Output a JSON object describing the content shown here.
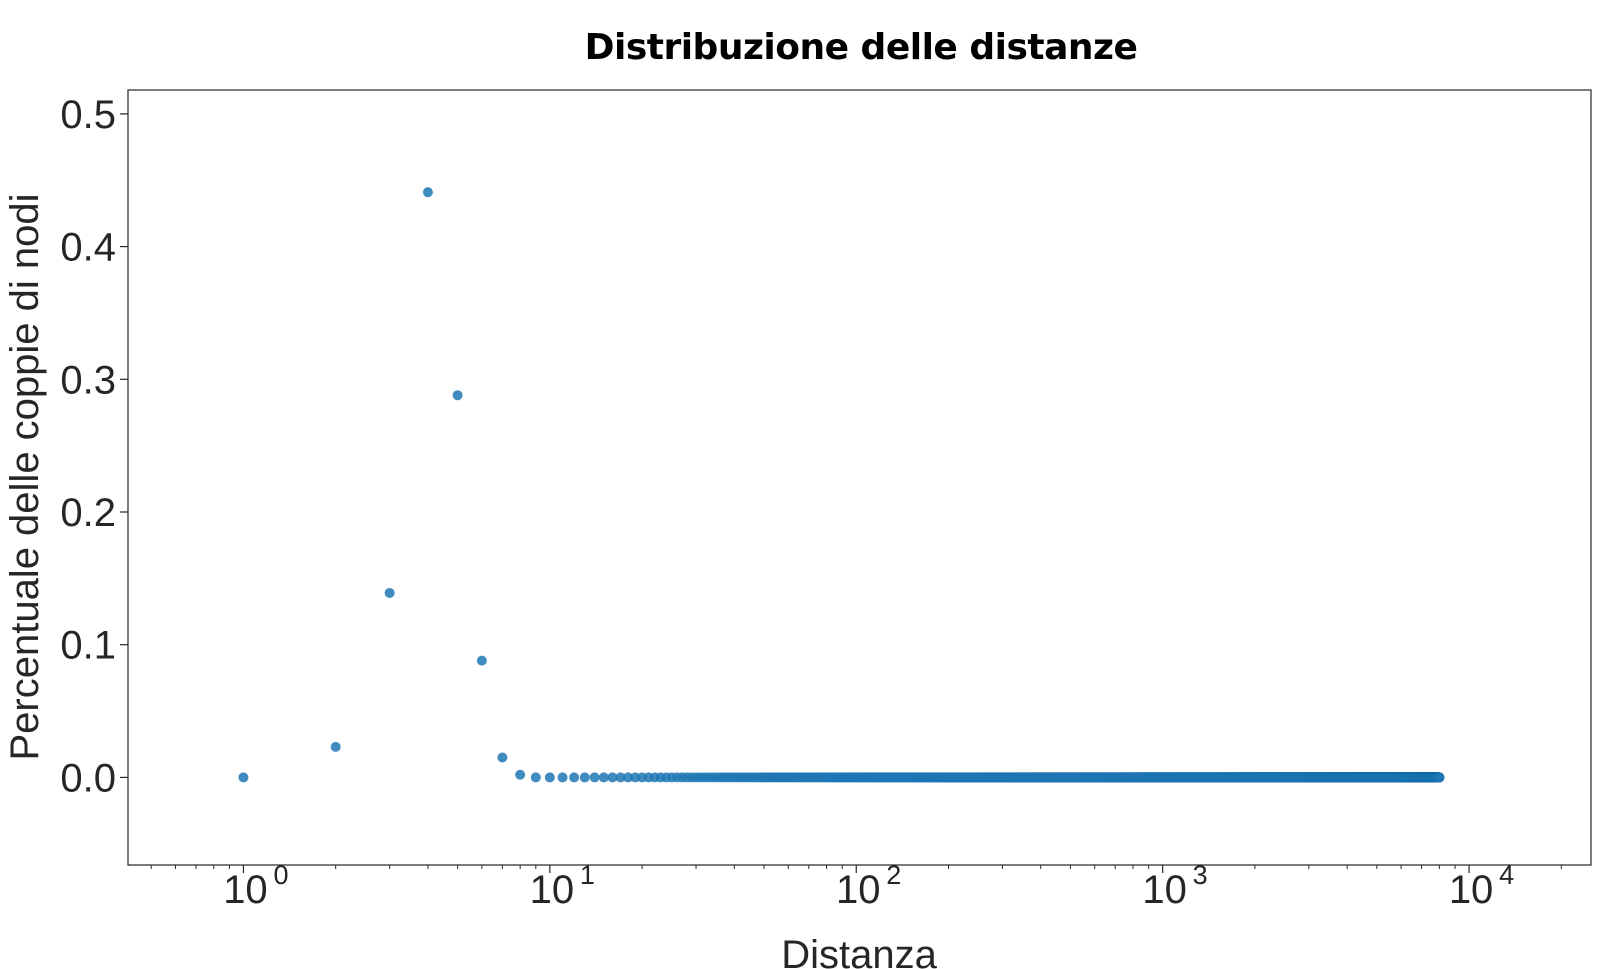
{
  "chart_data": {
    "type": "scatter",
    "title": "Distribuzione delle distanze",
    "xlabel": "Distanza",
    "ylabel": "Percentuale delle coppie di nodi",
    "x_scale": "log",
    "xlim": [
      0.42,
      25000
    ],
    "ylim": [
      -0.066,
      0.518
    ],
    "yticks": [
      "0.0",
      "0.1",
      "0.2",
      "0.3",
      "0.4",
      "0.5"
    ],
    "xticks": [
      {
        "base": "10",
        "exp": "0"
      },
      {
        "base": "10",
        "exp": "1"
      },
      {
        "base": "10",
        "exp": "2"
      },
      {
        "base": "10",
        "exp": "3"
      },
      {
        "base": "10",
        "exp": "4"
      }
    ],
    "grid": false,
    "marker_color": "#1f77b4",
    "points": [
      {
        "x": 1,
        "y": 0.0
      },
      {
        "x": 2,
        "y": 0.023
      },
      {
        "x": 3,
        "y": 0.139
      },
      {
        "x": 4,
        "y": 0.441
      },
      {
        "x": 5,
        "y": 0.288
      },
      {
        "x": 6,
        "y": 0.088
      },
      {
        "x": 7,
        "y": 0.015
      },
      {
        "x": 8,
        "y": 0.002
      }
    ],
    "tail": {
      "x_from": 9,
      "x_to": 8000,
      "y": 0.0
    }
  }
}
